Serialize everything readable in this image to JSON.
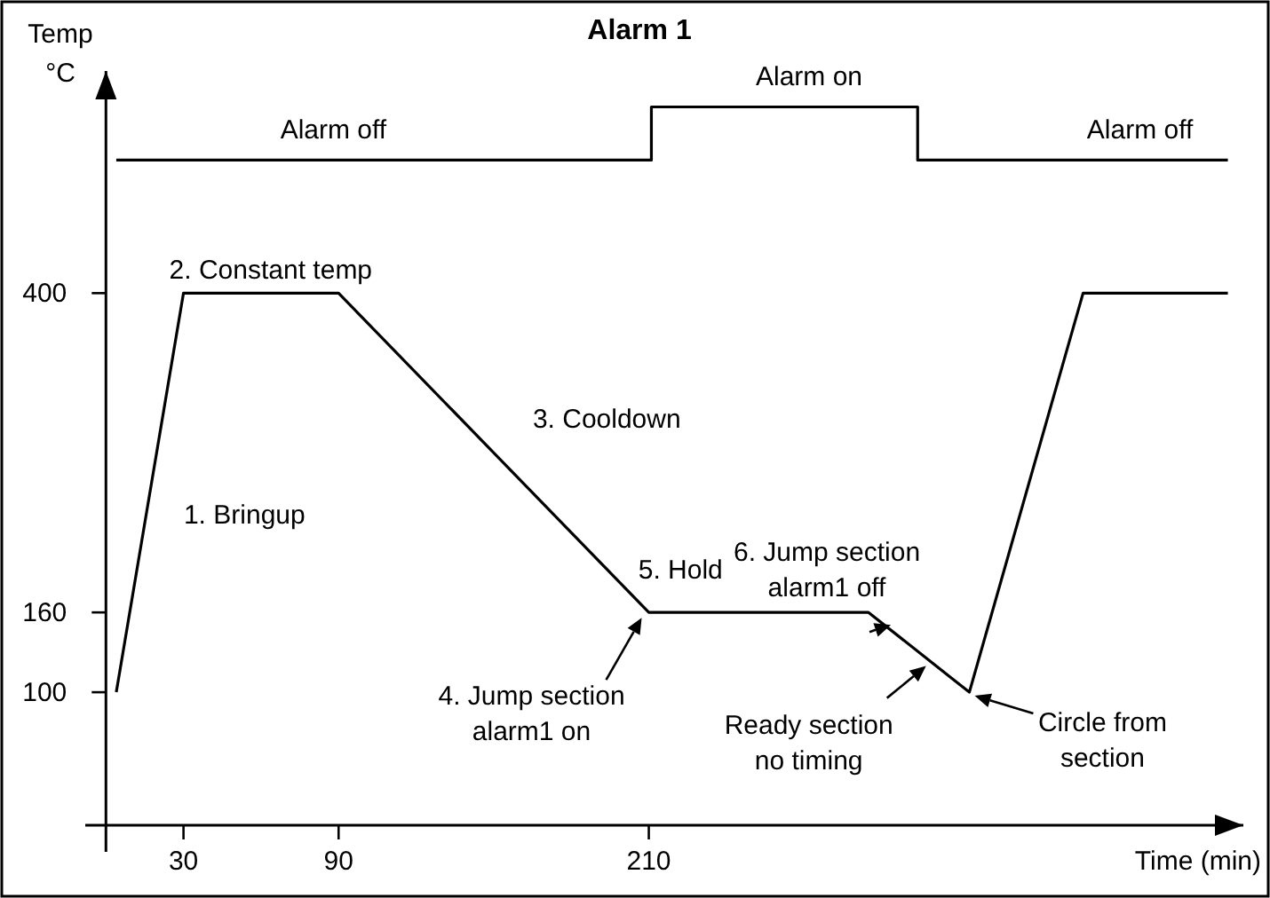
{
  "chart_data": {
    "type": "line",
    "title": "Alarm 1",
    "xlabel": "Time (min)",
    "ylabel": "Temp\n°C",
    "xlim": [
      -8,
      440
    ],
    "ylim": [
      -20,
      567
    ],
    "xticks": [
      30,
      90,
      210
    ],
    "yticks": [
      100,
      160,
      400
    ],
    "grid": false,
    "marker": "none",
    "line_style": "solid",
    "series": [
      {
        "color": "#000000",
        "x": [
          4,
          30,
          90,
          210,
          295,
          334,
          378,
          434
        ],
        "values": [
          100,
          400,
          400,
          160,
          160,
          100,
          400,
          400
        ]
      },
      {
        "color": "#000000",
        "x": [
          4,
          211,
          211,
          314,
          314,
          434
        ],
        "values": [
          500,
          500,
          540,
          540,
          500,
          500
        ]
      }
    ],
    "annotations": [
      {
        "text": "Alarm off",
        "x": 88,
        "y": 500
      },
      {
        "text": "Alarm on",
        "x": 272,
        "y": 540
      },
      {
        "text": "Alarm off",
        "x": 400,
        "y": 500
      },
      {
        "text": "1. Bringup",
        "x": 15,
        "y": 227
      },
      {
        "text": "2. Constant temp",
        "x": 30,
        "y": 400
      },
      {
        "text": "3. Cooldown",
        "x": 150,
        "y": 280
      },
      {
        "text": "4. Jump section\nalarm1 on",
        "x": 210,
        "y": 160
      },
      {
        "text": "5. Hold",
        "x": 230,
        "y": 160
      },
      {
        "text": "6. Jump section\nalarm1 off",
        "x": 305,
        "y": 148
      },
      {
        "text": "Ready section\nno timing",
        "x": 320,
        "y": 125
      },
      {
        "text": "Circle from\nsection",
        "x": 334,
        "y": 100
      }
    ]
  }
}
